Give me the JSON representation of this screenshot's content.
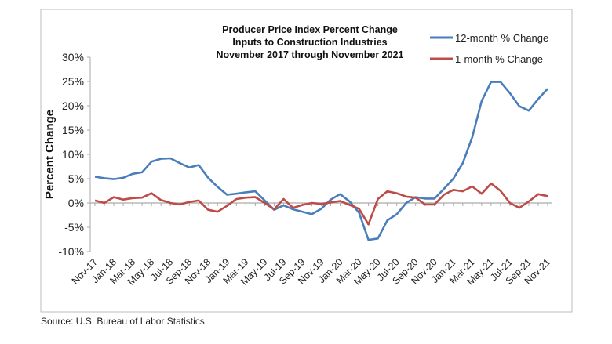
{
  "chart_data": {
    "type": "line",
    "title": [
      "Producer Price Index Percent Change",
      "Inputs to Construction Industries",
      "November 2017 through November 2021"
    ],
    "xlabel": "",
    "ylabel": "Percent Change",
    "ylim": [
      -10,
      30
    ],
    "yticks": [
      "30%",
      "25%",
      "20%",
      "15%",
      "10%",
      "5%",
      "0%",
      "-5%",
      "-10%"
    ],
    "ytick_values": [
      30,
      25,
      20,
      15,
      10,
      5,
      0,
      -5,
      -10
    ],
    "xtick_labels": [
      "Nov-17",
      "Jan-18",
      "Mar-18",
      "May-18",
      "Jul-18",
      "Sep-18",
      "Nov-18",
      "Jan-19",
      "Mar-19",
      "May-19",
      "Jul-19",
      "Sep-19",
      "Nov-19",
      "Jan-20",
      "Mar-20",
      "May-20",
      "Jul-20",
      "Sep-20",
      "Nov-20",
      "Jan-21",
      "Mar-21",
      "May-21",
      "Jul-21",
      "Sep-21",
      "Nov-21"
    ],
    "x_start": "Nov-17",
    "x_end": "Nov-21",
    "x_frequency": "monthly",
    "grid": false,
    "legend_position": "top-right",
    "series": [
      {
        "name": "12-month % Change",
        "color": "#4a7ebb",
        "values": [
          5.4,
          5.1,
          4.9,
          5.2,
          6.0,
          6.3,
          8.5,
          9.1,
          9.2,
          8.2,
          7.3,
          7.8,
          5.2,
          3.3,
          1.7,
          1.9,
          2.2,
          2.4,
          0.5,
          -1.4,
          -0.5,
          -1.3,
          -1.8,
          -2.3,
          -1.2,
          0.7,
          1.8,
          0.3,
          -2.0,
          -7.6,
          -7.3,
          -3.6,
          -2.3,
          0.0,
          1.2,
          0.9,
          0.9,
          2.9,
          5.0,
          8.2,
          13.5,
          21.0,
          24.9,
          24.9,
          22.6,
          19.9,
          19.0,
          21.4,
          23.5
        ]
      },
      {
        "name": "1-month % Change",
        "color": "#be4b48",
        "values": [
          0.5,
          0.0,
          1.2,
          0.7,
          1.0,
          1.1,
          2.0,
          0.6,
          0.0,
          -0.3,
          0.2,
          0.5,
          -1.4,
          -1.8,
          -0.6,
          0.8,
          1.1,
          1.2,
          0.0,
          -1.3,
          0.8,
          -1.0,
          -0.4,
          0.0,
          -0.2,
          0.1,
          0.4,
          -0.4,
          -1.2,
          -4.4,
          0.8,
          2.4,
          2.0,
          1.3,
          1.1,
          -0.3,
          -0.3,
          1.7,
          2.7,
          2.4,
          3.4,
          1.9,
          4.0,
          2.5,
          0.0,
          -1.0,
          0.3,
          1.8,
          1.4
        ]
      }
    ]
  },
  "source": "Source: U.S. Bureau of Labor Statistics"
}
